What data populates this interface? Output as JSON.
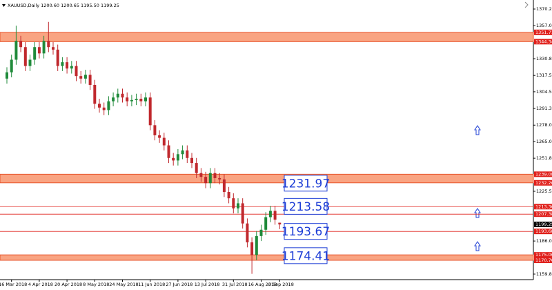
{
  "chart_data": {
    "type": "candlestick",
    "header": "XAUUSD,Daily  1200.60 1200.65 1195.50 1199.25",
    "categories": [
      null,
      "16 Mar 2018",
      null,
      null,
      null,
      null,
      null,
      "4 Apr 2018",
      null,
      null,
      null,
      null,
      null,
      "20 Apr 2018",
      null,
      null,
      null,
      null,
      null,
      "8 May 2018",
      null,
      null,
      null,
      null,
      null,
      "24 May 2018",
      null,
      null,
      null,
      null,
      null,
      "11 Jun 2018",
      null,
      null,
      null,
      null,
      null,
      "27 Jun 2018",
      null,
      null,
      null,
      null,
      null,
      "13 Jul 2018",
      null,
      null,
      null,
      null,
      null,
      "31 Jul 2018",
      null,
      null,
      null,
      null,
      null,
      "16 Aug 2018",
      null,
      null,
      null,
      "3 Sep 2018"
    ],
    "open": [
      1315,
      1320,
      1330,
      1345,
      1340,
      1325,
      1330,
      1340,
      1335,
      1345,
      1340,
      1338,
      1325,
      1328,
      1323,
      1325,
      1317,
      1315,
      1318,
      1310,
      1295,
      1292,
      1290,
      1297,
      1300,
      1303,
      1300,
      1297,
      1298,
      1299,
      1297,
      1300,
      1278,
      1270,
      1268,
      1262,
      1252,
      1250,
      1255,
      1258,
      1252,
      1248,
      1240,
      1237,
      1232,
      1240,
      1236,
      1235,
      1225,
      1220,
      1212,
      1216,
      1200,
      1185,
      1175,
      1190,
      1195,
      1205,
      1210,
      1200.6
    ],
    "high": [
      1324,
      1334,
      1357,
      1349,
      1344,
      1334,
      1344,
      1344,
      1349,
      1360,
      1344,
      1342,
      1332,
      1332,
      1329,
      1329,
      1321,
      1322,
      1322,
      1314,
      1299,
      1296,
      1301,
      1304,
      1307,
      1307,
      1304,
      1302,
      1303,
      1303,
      1304,
      1304,
      1282,
      1274,
      1272,
      1266,
      1256,
      1259,
      1262,
      1262,
      1256,
      1252,
      1244,
      1241,
      1244,
      1244,
      1240,
      1239,
      1229,
      1224,
      1220,
      1220,
      1204,
      1189,
      1194,
      1199,
      1209,
      1214,
      1214,
      1200.65
    ],
    "low": [
      1311,
      1316,
      1326,
      1336,
      1321,
      1321,
      1326,
      1331,
      1331,
      1336,
      1334,
      1321,
      1321,
      1319,
      1319,
      1313,
      1311,
      1311,
      1306,
      1291,
      1288,
      1286,
      1286,
      1293,
      1296,
      1296,
      1293,
      1293,
      1294,
      1293,
      1293,
      1274,
      1266,
      1264,
      1258,
      1248,
      1246,
      1246,
      1251,
      1248,
      1244,
      1236,
      1233,
      1228,
      1228,
      1232,
      1231,
      1221,
      1216,
      1208,
      1208,
      1196,
      1181,
      1160,
      1171,
      1186,
      1191,
      1201,
      1199,
      1195.5
    ],
    "close": [
      1320,
      1330,
      1345,
      1340,
      1325,
      1330,
      1340,
      1335,
      1345,
      1340,
      1338,
      1325,
      1328,
      1323,
      1325,
      1317,
      1315,
      1318,
      1310,
      1295,
      1292,
      1290,
      1297,
      1300,
      1303,
      1300,
      1297,
      1298,
      1299,
      1297,
      1300,
      1278,
      1270,
      1268,
      1262,
      1252,
      1250,
      1255,
      1258,
      1252,
      1248,
      1240,
      1237,
      1232,
      1240,
      1236,
      1235,
      1225,
      1220,
      1212,
      1216,
      1200,
      1185,
      1175,
      1190,
      1195,
      1205,
      1210,
      1203,
      1199.25
    ],
    "up_color": "#1f8a3a",
    "down_color": "#c0282d",
    "ylim": [
      1155.4,
      1377.4
    ],
    "yticks": [
      1370.25,
      1357.05,
      {
        "value": 1330.8,
        "label": "1330.80"
      },
      1317.55,
      1304.55,
      {
        "value": 1291.3,
        "label": "1291.30"
      },
      1278.05,
      1265.05,
      {
        "value": 1251.8,
        "label": "1251.80"
      },
      1225.55,
      1186.05,
      {
        "value": 1159.8,
        "label": "1159.80"
      }
    ],
    "zones": [
      [
        1351.71,
        1344.34
      ],
      [
        1239.08,
        1232.26
      ],
      [
        1175.06,
        1170.76
      ]
    ],
    "lines": [
      1213.36,
      1207.38,
      1193.68
    ],
    "level_boxes": [
      1231.97,
      1213.58,
      1193.67,
      1174.41
    ]
  }
}
